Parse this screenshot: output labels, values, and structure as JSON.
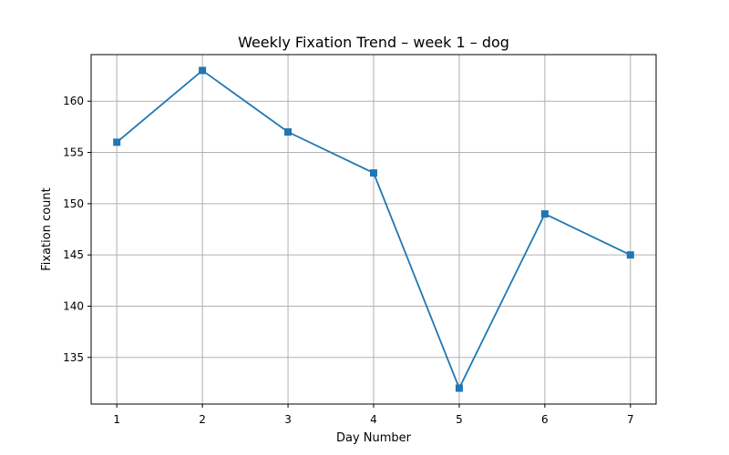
{
  "chart_data": {
    "type": "line",
    "title": "Weekly Fixation Trend – week 1 – dog",
    "xlabel": "Day Number",
    "ylabel": "Fixation count",
    "x": [
      1,
      2,
      3,
      4,
      5,
      6,
      7
    ],
    "series": [
      {
        "values": [
          156,
          163,
          157,
          153,
          132,
          149,
          145
        ],
        "color": "#1f77b4",
        "marker": "square"
      }
    ],
    "xlim": [
      0.7,
      7.3
    ],
    "ylim": [
      130.45,
      164.55
    ],
    "xticks": [
      1,
      2,
      3,
      4,
      5,
      6,
      7
    ],
    "yticks": [
      135,
      140,
      145,
      150,
      155,
      160
    ],
    "grid": true,
    "legend": "none"
  }
}
